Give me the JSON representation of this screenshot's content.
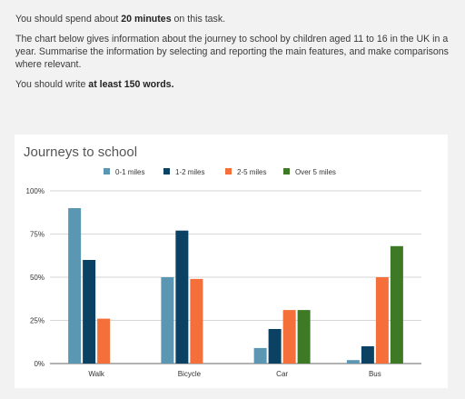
{
  "task": {
    "line1_pre": "You should spend about ",
    "line1_bold": "20 minutes",
    "line1_post": " on this task.",
    "paragraph2": "The chart below gives information about the journey to school by children aged 11 to 16 in the UK in a year. Summarise the information by selecting and reporting the main features, and make comparisons where relevant.",
    "line3_pre": "You should write ",
    "line3_bold": "at least 150 words."
  },
  "colors": {
    "0-1 miles": "#5b96b3",
    "1-2 miles": "#0b4263",
    "2-5 miles": "#f56f3a",
    "Over 5 miles": "#3e7a26"
  },
  "chart_data": {
    "type": "bar",
    "title": "Journeys to school",
    "categories": [
      "Walk",
      "Bicycle",
      "Car",
      "Bus"
    ],
    "series": [
      {
        "name": "0-1 miles",
        "values": [
          90,
          50,
          9,
          2
        ]
      },
      {
        "name": "1-2 miles",
        "values": [
          60,
          77,
          20,
          10
        ]
      },
      {
        "name": "2-5 miles",
        "values": [
          26,
          49,
          31,
          50
        ]
      },
      {
        "name": "Over 5 miles",
        "values": [
          0,
          0,
          31,
          68
        ]
      }
    ],
    "ylim": [
      0,
      100
    ],
    "yticks": [
      "0%",
      "25%",
      "50%",
      "75%",
      "100%"
    ],
    "legend": "top",
    "grid": true
  }
}
